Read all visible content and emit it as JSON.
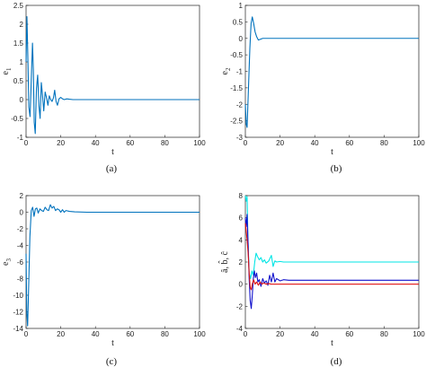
{
  "chart_data": [
    {
      "type": "line",
      "panel_label": "(a)",
      "xlabel": "t",
      "ylabel": "e",
      "ylabel_sub": "1",
      "xlim": [
        0,
        100
      ],
      "ylim": [
        -1,
        2.5
      ],
      "xticks": [
        "0",
        "20",
        "40",
        "60",
        "80",
        "100"
      ],
      "yticks": [
        "-1",
        "-0.5",
        "0",
        "0.5",
        "1",
        "1.5",
        "2",
        "2.5"
      ],
      "series": [
        {
          "color": "#0072BD",
          "x": [
            0,
            0.5,
            1.0,
            1.6,
            2.3,
            3.0,
            3.7,
            4.2,
            4.7,
            5.3,
            6.0,
            6.7,
            7.4,
            8.1,
            8.8,
            9.5,
            10.2,
            11.0,
            11.8,
            12.6,
            13.4,
            14.2,
            15.0,
            15.8,
            16.5,
            17.3,
            18.1,
            19.0,
            20.0,
            21.0,
            22.0,
            23.5,
            25.0,
            27.0,
            30.0,
            35.0,
            40.0,
            50.0,
            60.0,
            80.0,
            100.0
          ],
          "y": [
            1.0,
            2.2,
            1.2,
            -0.2,
            -0.45,
            0.5,
            1.5,
            0.8,
            -0.6,
            -0.9,
            0.3,
            0.65,
            -0.15,
            -0.5,
            0.45,
            0.1,
            -0.3,
            0.2,
            0.05,
            -0.15,
            0.1,
            0.0,
            -0.05,
            0.05,
            0.25,
            -0.05,
            -0.15,
            0.02,
            0.06,
            0.02,
            0.0,
            0.02,
            0.01,
            0.0,
            0.0,
            0.0,
            0.0,
            0.0,
            0.0,
            0.0,
            0.0
          ]
        }
      ]
    },
    {
      "type": "line",
      "panel_label": "(b)",
      "xlabel": "t",
      "ylabel": "e",
      "ylabel_sub": "2",
      "xlim": [
        0,
        100
      ],
      "ylim": [
        -3,
        1
      ],
      "xticks": [
        "0",
        "20",
        "40",
        "60",
        "80",
        "100"
      ],
      "yticks": [
        "-3",
        "-2.5",
        "-2",
        "-1.5",
        "-1",
        "-0.5",
        "0",
        "0.5",
        "1"
      ],
      "series": [
        {
          "color": "#0072BD",
          "x": [
            0,
            0.5,
            1.0,
            1.8,
            2.6,
            3.3,
            4.0,
            4.8,
            5.6,
            6.5,
            7.5,
            8.5,
            10.0,
            12.0,
            15.0,
            20.0,
            30.0,
            50.0,
            80.0,
            100.0
          ],
          "y": [
            -2.0,
            -2.6,
            -2.7,
            -1.5,
            -0.3,
            0.45,
            0.65,
            0.45,
            0.2,
            0.05,
            -0.05,
            -0.03,
            0.0,
            0.0,
            0.0,
            0.0,
            0.0,
            0.0,
            0.0,
            0.0
          ]
        }
      ]
    },
    {
      "type": "line",
      "panel_label": "(c)",
      "xlabel": "t",
      "ylabel": "e",
      "ylabel_sub": "3",
      "xlim": [
        0,
        100
      ],
      "ylim": [
        -14,
        2
      ],
      "xticks": [
        "0",
        "20",
        "40",
        "60",
        "80",
        "100"
      ],
      "yticks": [
        "-14",
        "-12",
        "-10",
        "-8",
        "-6",
        "-4",
        "-2",
        "0",
        "2"
      ],
      "series": [
        {
          "color": "#0072BD",
          "x": [
            0,
            0.4,
            0.9,
            1.5,
            2.2,
            3.0,
            3.8,
            4.6,
            5.4,
            6.2,
            7.0,
            8.0,
            9.0,
            10.0,
            11.0,
            12.0,
            13.0,
            14.0,
            15.0,
            16.0,
            17.0,
            18.0,
            19.0,
            20.0,
            21.0,
            22.0,
            23.0,
            25.0,
            28.0,
            35.0,
            50.0,
            80.0,
            100.0
          ],
          "y": [
            -5.0,
            -12.0,
            -13.7,
            -9.0,
            -3.0,
            0.2,
            0.6,
            -0.5,
            0.4,
            0.5,
            -0.1,
            0.4,
            0.2,
            0.1,
            0.6,
            0.3,
            0.2,
            0.9,
            0.5,
            0.7,
            0.2,
            0.4,
            0.3,
            0.0,
            0.3,
            0.0,
            0.2,
            0.1,
            0.05,
            0.0,
            0.0,
            0.0,
            0.0
          ]
        }
      ]
    },
    {
      "type": "line",
      "panel_label": "(d)",
      "xlabel": "t",
      "ylabel": "â, b̂, ĉ",
      "xlim": [
        0,
        100
      ],
      "ylim": [
        -4,
        8
      ],
      "xticks": [
        "0",
        "20",
        "40",
        "60",
        "80",
        "100"
      ],
      "yticks": [
        "-4",
        "-2",
        "0",
        "2",
        "4",
        "6",
        "8"
      ],
      "series": [
        {
          "color": "#00E5E5",
          "x": [
            0,
            0.5,
            1.0,
            1.5,
            2.2,
            3.0,
            3.8,
            4.6,
            5.4,
            6.2,
            7.0,
            8.0,
            9.0,
            10.0,
            11.0,
            12.0,
            13.5,
            15.0,
            16.0,
            17.0,
            18.0,
            20.0,
            22.0,
            25.0,
            30.0,
            40.0,
            60.0,
            80.0,
            100.0
          ],
          "y": [
            8.0,
            7.5,
            7.9,
            4.0,
            1.0,
            0.5,
            1.2,
            0.8,
            2.0,
            2.8,
            2.5,
            2.2,
            2.4,
            2.0,
            2.2,
            1.9,
            2.1,
            2.6,
            1.6,
            2.1,
            2.0,
            2.05,
            2.0,
            2.0,
            2.0,
            2.0,
            2.0,
            2.0,
            2.0
          ]
        },
        {
          "color": "#1010CC",
          "x": [
            0,
            0.5,
            1.0,
            1.6,
            2.2,
            2.8,
            3.4,
            4.0,
            4.6,
            5.2,
            5.8,
            6.5,
            7.2,
            8.0,
            9.0,
            10.0,
            11.0,
            12.0,
            13.0,
            14.0,
            15.0,
            16.0,
            17.0,
            18.0,
            20.0,
            22.0,
            25.0,
            30.0,
            40.0,
            60.0,
            80.0,
            100.0
          ],
          "y": [
            6.0,
            5.2,
            6.3,
            3.5,
            0.5,
            -1.5,
            -2.2,
            -1.0,
            0.5,
            1.2,
            0.6,
            1.0,
            0.2,
            0.4,
            -0.2,
            0.5,
            0.1,
            0.3,
            -0.1,
            0.8,
            0.2,
            1.0,
            0.2,
            0.5,
            0.3,
            0.4,
            0.35,
            0.35,
            0.35,
            0.35,
            0.35,
            0.35
          ]
        },
        {
          "color": "#E01010",
          "x": [
            0,
            0.5,
            1.0,
            1.6,
            2.2,
            2.8,
            3.4,
            4.0,
            4.8,
            5.6,
            6.5,
            7.5,
            8.5,
            9.5,
            10.5,
            12.0,
            13.5,
            15.0,
            17.0,
            20.0,
            25.0,
            30.0,
            40.0,
            60.0,
            80.0,
            100.0
          ],
          "y": [
            5.5,
            4.8,
            4.0,
            2.8,
            1.0,
            -0.3,
            -0.5,
            0.0,
            0.4,
            0.0,
            0.2,
            -0.1,
            0.2,
            0.0,
            0.1,
            0.0,
            0.05,
            0.0,
            0.0,
            0.0,
            0.0,
            0.0,
            0.0,
            0.0,
            0.0,
            0.0
          ]
        }
      ]
    }
  ]
}
